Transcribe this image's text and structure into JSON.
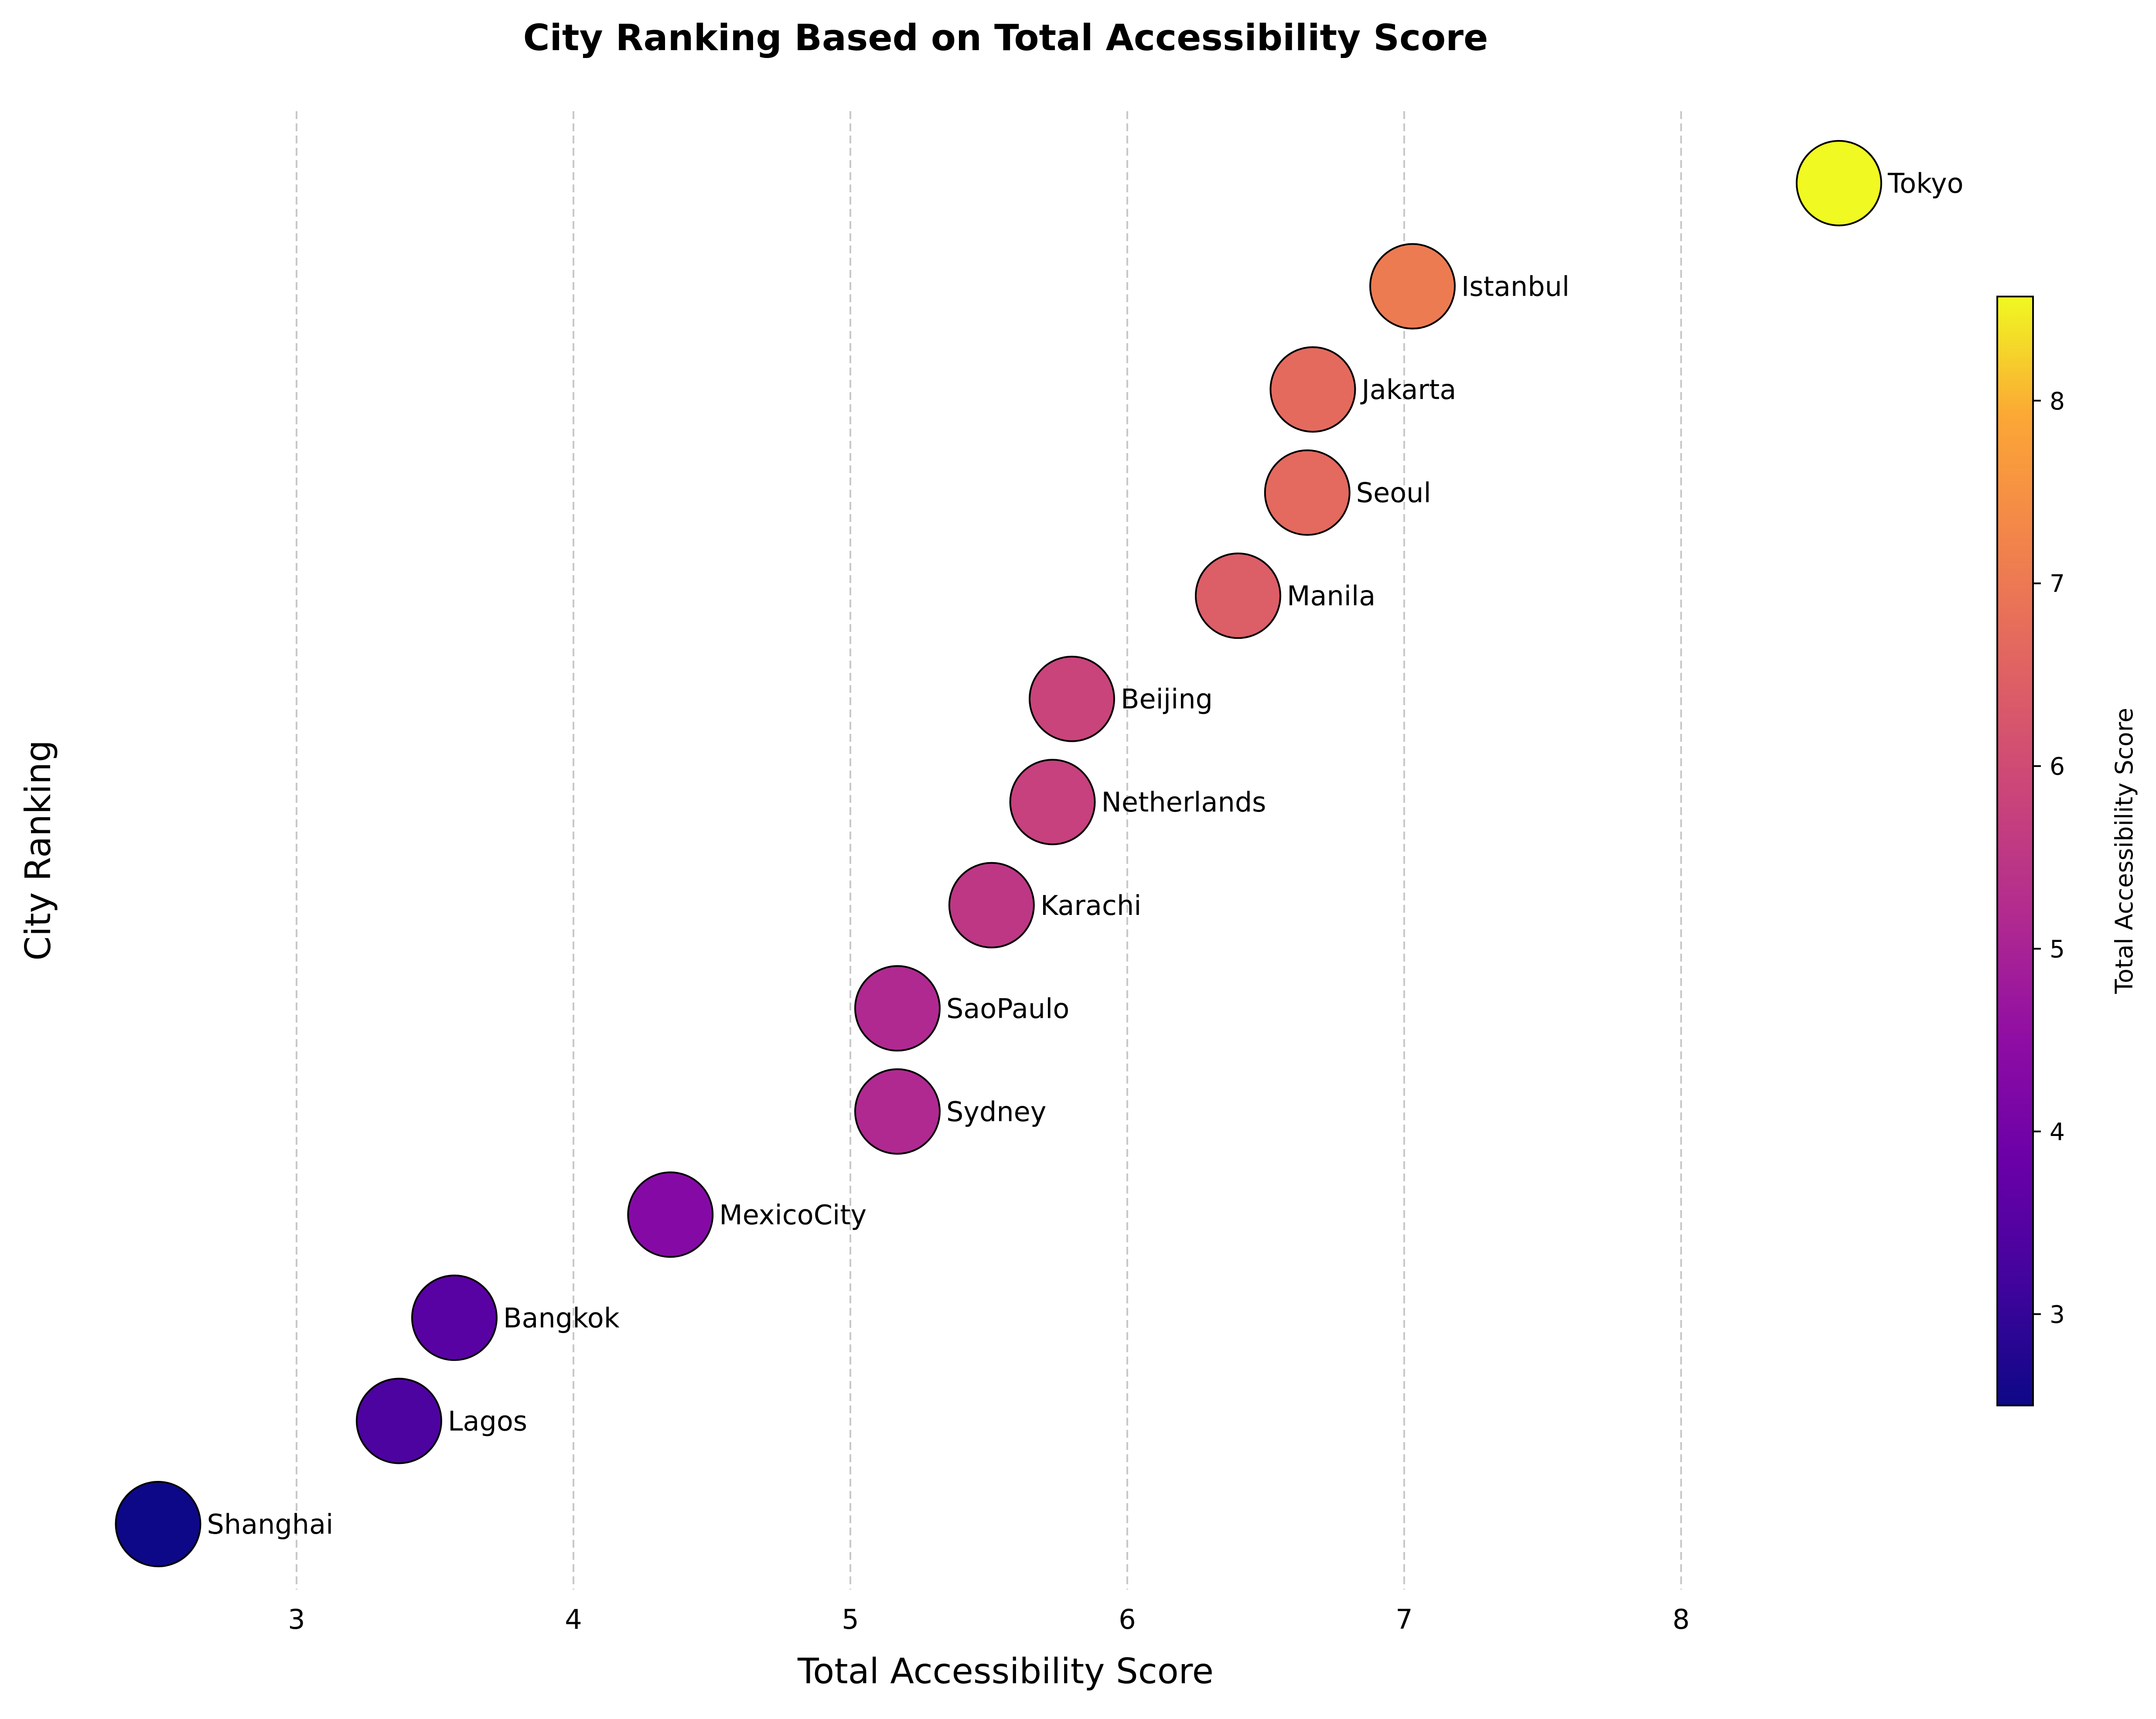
{
  "chart_data": {
    "type": "scatter",
    "title": "City Ranking Based on Total Accessibility Score",
    "xlabel": "Total Accessibility Score",
    "ylabel": "City Ranking",
    "xlim": [
      2.5,
      8.6
    ],
    "xticks": [
      3,
      4,
      5,
      6,
      7,
      8
    ],
    "grid": "x-dashed",
    "colormap": "plasma",
    "colorbar": {
      "label": "Total Accessibility Score",
      "range": [
        2.5,
        8.57
      ],
      "ticks": [
        3,
        4,
        5,
        6,
        7,
        8
      ],
      "position": "right"
    },
    "points": [
      {
        "label": "Shanghai",
        "x": 2.5,
        "rank": 1
      },
      {
        "label": "Lagos",
        "x": 3.37,
        "rank": 2
      },
      {
        "label": "Bangkok",
        "x": 3.57,
        "rank": 3
      },
      {
        "label": "MexicoCity",
        "x": 4.35,
        "rank": 4
      },
      {
        "label": "Sydney",
        "x": 5.17,
        "rank": 5
      },
      {
        "label": "SaoPaulo",
        "x": 5.17,
        "rank": 6
      },
      {
        "label": "Karachi",
        "x": 5.51,
        "rank": 7
      },
      {
        "label": "Netherlands",
        "x": 5.73,
        "rank": 8
      },
      {
        "label": "Beijing",
        "x": 5.8,
        "rank": 9
      },
      {
        "label": "Manila",
        "x": 6.4,
        "rank": 10
      },
      {
        "label": "Seoul",
        "x": 6.65,
        "rank": 11
      },
      {
        "label": "Jakarta",
        "x": 6.67,
        "rank": 12
      },
      {
        "label": "Istanbul",
        "x": 7.03,
        "rank": 13
      },
      {
        "label": "Tokyo",
        "x": 8.57,
        "rank": 14
      }
    ]
  }
}
